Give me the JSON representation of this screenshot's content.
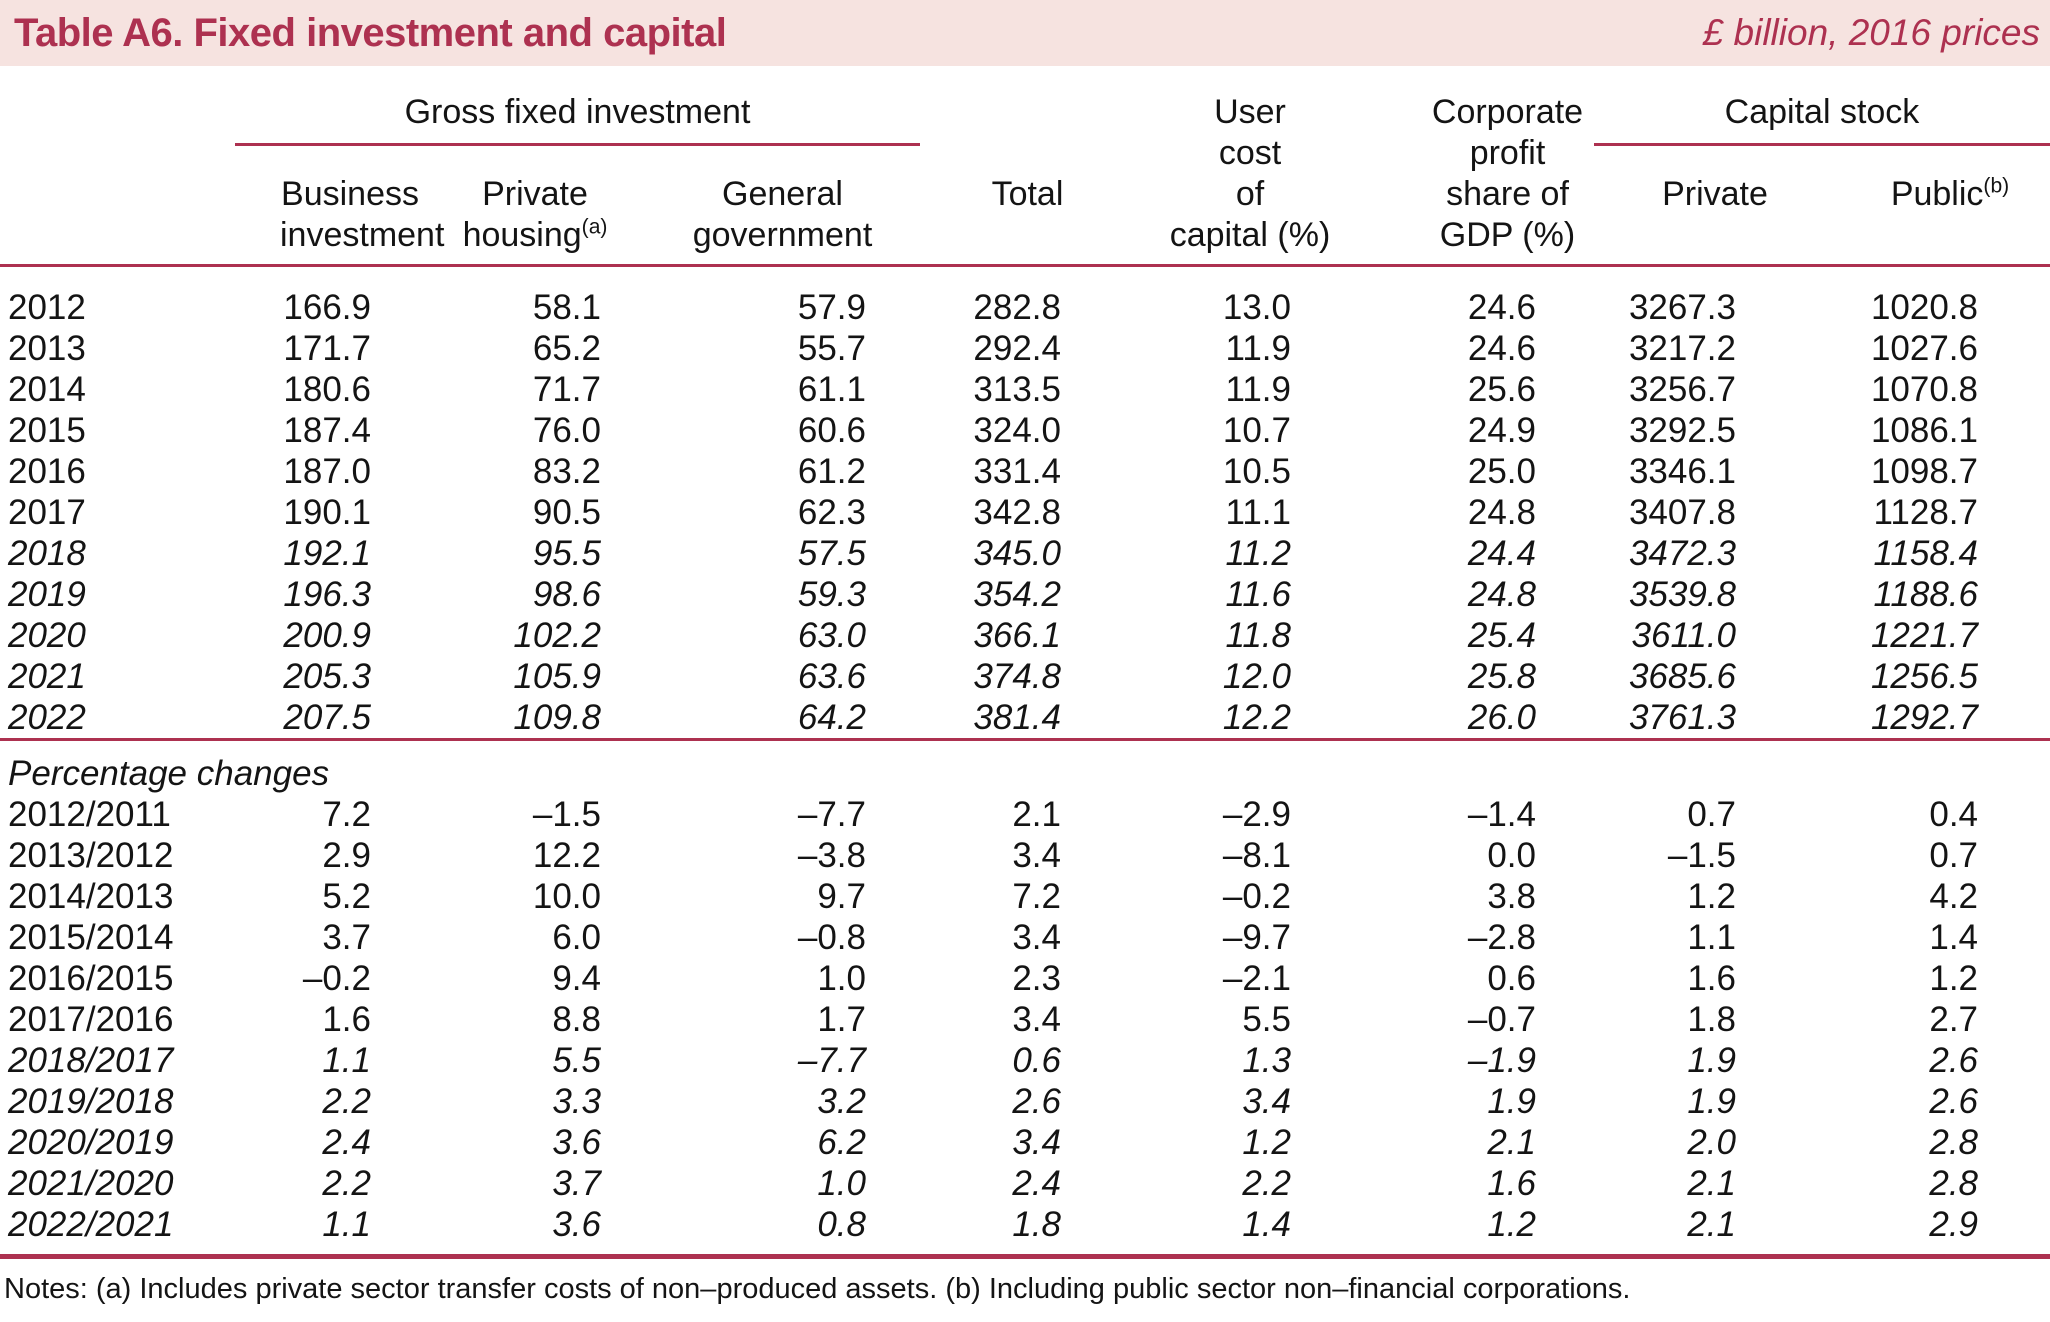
{
  "header": {
    "title": "Table A6. Fixed investment and capital",
    "units": "£ billion, 2016 prices"
  },
  "colors": {
    "accent": "#ad3150",
    "band": "#f6e3e0",
    "text": "#141414"
  },
  "table": {
    "groups": {
      "gross_fixed_investment": "Gross fixed investment",
      "capital_stock": "Capital stock"
    },
    "columns": {
      "business": {
        "l1": "Business",
        "l2": "investment"
      },
      "private_housing": {
        "l1": "Private",
        "l2": "housing",
        "sup": "(a)"
      },
      "general_government": {
        "l1": "General",
        "l2": "government"
      },
      "total": "Total",
      "user_cost": {
        "l1": "User",
        "l2": "cost",
        "l3": "of",
        "l4": "capital (%)"
      },
      "corporate_profit": {
        "l1": "Corporate",
        "l2": "profit",
        "l3": "share of",
        "l4": "GDP (%)"
      },
      "cs_private": "Private",
      "cs_public": {
        "label": "Public",
        "sup": "(b)"
      }
    },
    "levels_rows": [
      {
        "label": "2012",
        "italic": false,
        "values": [
          "166.9",
          "58.1",
          "57.9",
          "282.8",
          "13.0",
          "24.6",
          "3267.3",
          "1020.8"
        ]
      },
      {
        "label": "2013",
        "italic": false,
        "values": [
          "171.7",
          "65.2",
          "55.7",
          "292.4",
          "11.9",
          "24.6",
          "3217.2",
          "1027.6"
        ]
      },
      {
        "label": "2014",
        "italic": false,
        "values": [
          "180.6",
          "71.7",
          "61.1",
          "313.5",
          "11.9",
          "25.6",
          "3256.7",
          "1070.8"
        ]
      },
      {
        "label": "2015",
        "italic": false,
        "values": [
          "187.4",
          "76.0",
          "60.6",
          "324.0",
          "10.7",
          "24.9",
          "3292.5",
          "1086.1"
        ]
      },
      {
        "label": "2016",
        "italic": false,
        "values": [
          "187.0",
          "83.2",
          "61.2",
          "331.4",
          "10.5",
          "25.0",
          "3346.1",
          "1098.7"
        ]
      },
      {
        "label": "2017",
        "italic": false,
        "values": [
          "190.1",
          "90.5",
          "62.3",
          "342.8",
          "11.1",
          "24.8",
          "3407.8",
          "1128.7"
        ]
      },
      {
        "label": "2018",
        "italic": true,
        "values": [
          "192.1",
          "95.5",
          "57.5",
          "345.0",
          "11.2",
          "24.4",
          "3472.3",
          "1158.4"
        ]
      },
      {
        "label": "2019",
        "italic": true,
        "values": [
          "196.3",
          "98.6",
          "59.3",
          "354.2",
          "11.6",
          "24.8",
          "3539.8",
          "1188.6"
        ]
      },
      {
        "label": "2020",
        "italic": true,
        "values": [
          "200.9",
          "102.2",
          "63.0",
          "366.1",
          "11.8",
          "25.4",
          "3611.0",
          "1221.7"
        ]
      },
      {
        "label": "2021",
        "italic": true,
        "values": [
          "205.3",
          "105.9",
          "63.6",
          "374.8",
          "12.0",
          "25.8",
          "3685.6",
          "1256.5"
        ]
      },
      {
        "label": "2022",
        "italic": true,
        "values": [
          "207.5",
          "109.8",
          "64.2",
          "381.4",
          "12.2",
          "26.0",
          "3761.3",
          "1292.7"
        ]
      }
    ],
    "pct_section_label": "Percentage changes",
    "pct_rows": [
      {
        "label": "2012/2011",
        "italic": false,
        "values": [
          "7.2",
          "–1.5",
          "–7.7",
          "2.1",
          "–2.9",
          "–1.4",
          "0.7",
          "0.4"
        ]
      },
      {
        "label": "2013/2012",
        "italic": false,
        "values": [
          "2.9",
          "12.2",
          "–3.8",
          "3.4",
          "–8.1",
          "0.0",
          "–1.5",
          "0.7"
        ]
      },
      {
        "label": "2014/2013",
        "italic": false,
        "values": [
          "5.2",
          "10.0",
          "9.7",
          "7.2",
          "–0.2",
          "3.8",
          "1.2",
          "4.2"
        ]
      },
      {
        "label": "2015/2014",
        "italic": false,
        "values": [
          "3.7",
          "6.0",
          "–0.8",
          "3.4",
          "–9.7",
          "–2.8",
          "1.1",
          "1.4"
        ]
      },
      {
        "label": "2016/2015",
        "italic": false,
        "values": [
          "–0.2",
          "9.4",
          "1.0",
          "2.3",
          "–2.1",
          "0.6",
          "1.6",
          "1.2"
        ]
      },
      {
        "label": "2017/2016",
        "italic": false,
        "values": [
          "1.6",
          "8.8",
          "1.7",
          "3.4",
          "5.5",
          "–0.7",
          "1.8",
          "2.7"
        ]
      },
      {
        "label": "2018/2017",
        "italic": true,
        "values": [
          "1.1",
          "5.5",
          "–7.7",
          "0.6",
          "1.3",
          "–1.9",
          "1.9",
          "2.6"
        ]
      },
      {
        "label": "2019/2018",
        "italic": true,
        "values": [
          "2.2",
          "3.3",
          "3.2",
          "2.6",
          "3.4",
          "1.9",
          "1.9",
          "2.6"
        ]
      },
      {
        "label": "2020/2019",
        "italic": true,
        "values": [
          "2.4",
          "3.6",
          "6.2",
          "3.4",
          "1.2",
          "2.1",
          "2.0",
          "2.8"
        ]
      },
      {
        "label": "2021/2020",
        "italic": true,
        "values": [
          "2.2",
          "3.7",
          "1.0",
          "2.4",
          "2.2",
          "1.6",
          "2.1",
          "2.8"
        ]
      },
      {
        "label": "2022/2021",
        "italic": true,
        "values": [
          "1.1",
          "3.6",
          "0.8",
          "1.8",
          "1.4",
          "1.2",
          "2.1",
          "2.9"
        ]
      }
    ]
  },
  "notes": "Notes: (a) Includes private sector transfer costs of non–produced assets. (b) Including public sector non–financial corporations."
}
